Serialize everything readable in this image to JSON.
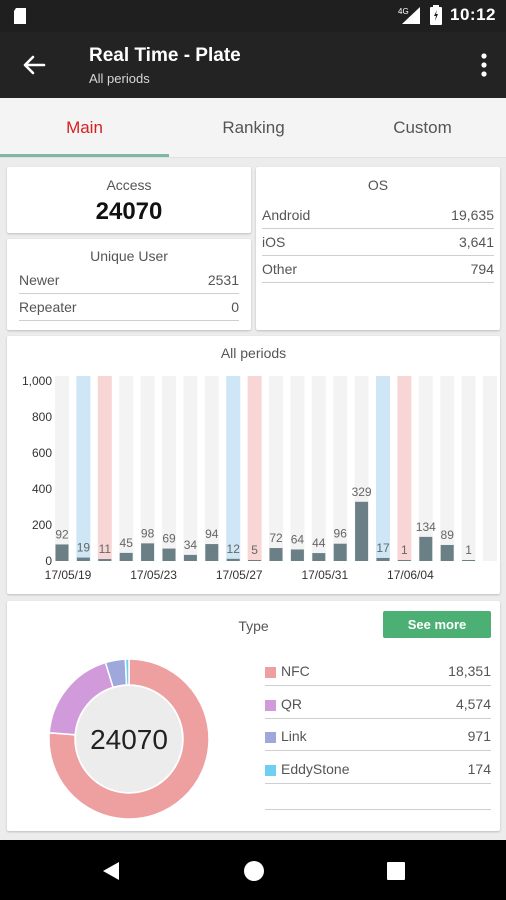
{
  "status_bar": {
    "time": "10:12",
    "network": "4G"
  },
  "app_bar": {
    "title": "Real Time - Plate",
    "subtitle": "All periods"
  },
  "tabs": [
    {
      "label": "Main",
      "active": true
    },
    {
      "label": "Ranking",
      "active": false
    },
    {
      "label": "Custom",
      "active": false
    }
  ],
  "access": {
    "title": "Access",
    "value": "24070"
  },
  "unique_user": {
    "title": "Unique User",
    "rows": [
      {
        "label": "Newer",
        "value": "2531"
      },
      {
        "label": "Repeater",
        "value": "0"
      }
    ]
  },
  "os": {
    "title": "OS",
    "rows": [
      {
        "label": "Android",
        "value": "19,635"
      },
      {
        "label": "iOS",
        "value": "3,641"
      },
      {
        "label": "Other",
        "value": "794"
      }
    ]
  },
  "colors": {
    "accent": "#d62020",
    "bar": "#6b7f86",
    "weekend_blue": "#cfe6f6",
    "weekend_pink": "#f8d6d6",
    "see_more": "#4caf74"
  },
  "chart_data": {
    "type": "bar",
    "title": "All periods",
    "ylim": [
      0,
      1000
    ],
    "yticks": [
      "0",
      "200",
      "400",
      "600",
      "800",
      "1,000"
    ],
    "categories": [
      "17/05/19",
      "17/05/20",
      "17/05/21",
      "17/05/22",
      "17/05/23",
      "17/05/24",
      "17/05/25",
      "17/05/26",
      "17/05/27",
      "17/05/28",
      "17/05/29",
      "17/05/30",
      "17/05/31",
      "17/06/01",
      "17/06/02",
      "17/06/03",
      "17/06/04",
      "17/06/05",
      "17/06/06",
      "17/06/07",
      "17/06/08"
    ],
    "xtick_labels": [
      "17/05/19",
      "17/05/23",
      "17/05/27",
      "17/05/31",
      "17/06/04"
    ],
    "values": [
      92,
      19,
      11,
      45,
      98,
      69,
      34,
      94,
      12,
      5,
      72,
      64,
      44,
      96,
      329,
      17,
      1,
      134,
      89,
      1,
      0
    ],
    "value_labels": [
      "92",
      "19",
      "11",
      "45",
      "98",
      "69",
      "34",
      "94",
      "12",
      "5",
      "72",
      "64",
      "44",
      "96",
      "329",
      "17",
      "1",
      "134",
      "89",
      "1",
      ""
    ],
    "day_types": [
      "weekday",
      "saturday",
      "sunday",
      "weekday",
      "weekday",
      "weekday",
      "weekday",
      "weekday",
      "saturday",
      "sunday",
      "weekday",
      "weekday",
      "weekday",
      "weekday",
      "weekday",
      "saturday",
      "sunday",
      "weekday",
      "weekday",
      "weekday",
      "weekday"
    ]
  },
  "type_card": {
    "title": "Type",
    "see_more": "See more",
    "total": "24070",
    "items": [
      {
        "name": "NFC",
        "value": "18,351",
        "raw": 18351,
        "color": "#ee9f9f"
      },
      {
        "name": "QR",
        "value": "4,574",
        "raw": 4574,
        "color": "#d19adb"
      },
      {
        "name": "Link",
        "value": "971",
        "raw": 971,
        "color": "#9fa8db"
      },
      {
        "name": "EddyStone",
        "value": "174",
        "raw": 174,
        "color": "#6fcff0"
      }
    ]
  }
}
